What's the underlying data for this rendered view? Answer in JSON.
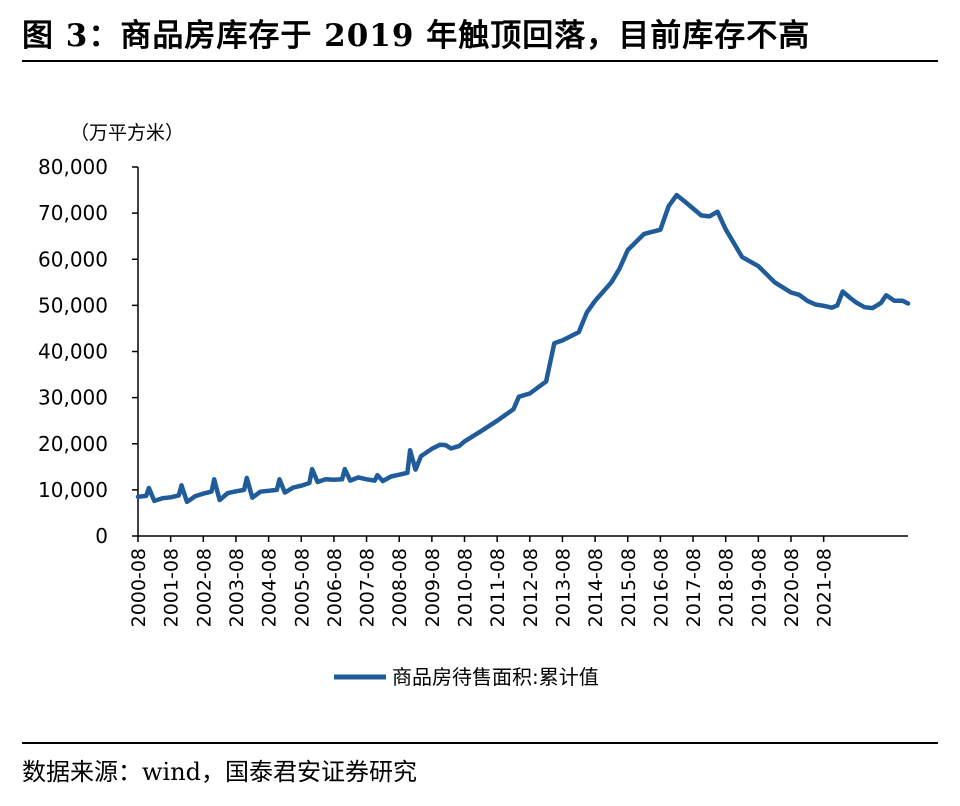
{
  "figure": {
    "title": "图 3：商品房库存于 2019 年触顶回落，目前库存不高",
    "source": "数据来源：wind，国泰君安证券研究"
  },
  "colors": {
    "series": "#1f5c99",
    "axis": "#000000"
  },
  "chart_data": {
    "type": "line",
    "unit_label": "（万平方米）",
    "ylim": [
      0,
      80000
    ],
    "y_ticks": [
      {
        "value": 0,
        "label": "0"
      },
      {
        "value": 10000,
        "label": "10,000"
      },
      {
        "value": 20000,
        "label": "20,000"
      },
      {
        "value": 30000,
        "label": "30,000"
      },
      {
        "value": 40000,
        "label": "40,000"
      },
      {
        "value": 50000,
        "label": "50,000"
      },
      {
        "value": 60000,
        "label": "60,000"
      },
      {
        "value": 70000,
        "label": "70,000"
      },
      {
        "value": 80000,
        "label": "80,000"
      }
    ],
    "x_ticks": [
      "2000-08",
      "2001-08",
      "2002-08",
      "2003-08",
      "2004-08",
      "2005-08",
      "2006-08",
      "2007-08",
      "2008-08",
      "2009-08",
      "2010-08",
      "2011-08",
      "2012-08",
      "2013-08",
      "2014-08",
      "2015-08",
      "2016-08",
      "2017-08",
      "2018-08",
      "2019-08",
      "2020-08",
      "2021-08"
    ],
    "grid": false,
    "legend_position": "bottom",
    "series": [
      {
        "name": "商品房待售面积:累计值",
        "points": [
          {
            "x": "2000-08",
            "y": 8500
          },
          {
            "x": "2000-11",
            "y": 8700
          },
          {
            "x": "2000-12",
            "y": 10400
          },
          {
            "x": "2001-02",
            "y": 7600
          },
          {
            "x": "2001-05",
            "y": 8200
          },
          {
            "x": "2001-08",
            "y": 8400
          },
          {
            "x": "2001-11",
            "y": 8800
          },
          {
            "x": "2001-12",
            "y": 11000
          },
          {
            "x": "2002-02",
            "y": 7400
          },
          {
            "x": "2002-05",
            "y": 8600
          },
          {
            "x": "2002-08",
            "y": 9200
          },
          {
            "x": "2002-11",
            "y": 9600
          },
          {
            "x": "2002-12",
            "y": 12300
          },
          {
            "x": "2003-02",
            "y": 7800
          },
          {
            "x": "2003-05",
            "y": 9300
          },
          {
            "x": "2003-08",
            "y": 9700
          },
          {
            "x": "2003-11",
            "y": 10000
          },
          {
            "x": "2003-12",
            "y": 12600
          },
          {
            "x": "2004-02",
            "y": 8300
          },
          {
            "x": "2004-05",
            "y": 9600
          },
          {
            "x": "2004-08",
            "y": 9800
          },
          {
            "x": "2004-11",
            "y": 10000
          },
          {
            "x": "2004-12",
            "y": 12300
          },
          {
            "x": "2005-02",
            "y": 9400
          },
          {
            "x": "2005-05",
            "y": 10500
          },
          {
            "x": "2005-08",
            "y": 10900
          },
          {
            "x": "2005-11",
            "y": 11500
          },
          {
            "x": "2005-12",
            "y": 14500
          },
          {
            "x": "2006-02",
            "y": 11700
          },
          {
            "x": "2006-05",
            "y": 12300
          },
          {
            "x": "2006-08",
            "y": 12200
          },
          {
            "x": "2006-11",
            "y": 12300
          },
          {
            "x": "2006-12",
            "y": 14500
          },
          {
            "x": "2007-02",
            "y": 12000
          },
          {
            "x": "2007-05",
            "y": 12700
          },
          {
            "x": "2007-08",
            "y": 12300
          },
          {
            "x": "2007-11",
            "y": 12000
          },
          {
            "x": "2007-12",
            "y": 13200
          },
          {
            "x": "2008-02",
            "y": 11900
          },
          {
            "x": "2008-05",
            "y": 12900
          },
          {
            "x": "2008-08",
            "y": 13300
          },
          {
            "x": "2008-11",
            "y": 13700
          },
          {
            "x": "2008-12",
            "y": 18600
          },
          {
            "x": "2009-02",
            "y": 14400
          },
          {
            "x": "2009-04",
            "y": 17300
          },
          {
            "x": "2009-08",
            "y": 18900
          },
          {
            "x": "2009-11",
            "y": 19800
          },
          {
            "x": "2010-01",
            "y": 19700
          },
          {
            "x": "2010-03",
            "y": 19000
          },
          {
            "x": "2010-06",
            "y": 19500
          },
          {
            "x": "2010-08",
            "y": 20500
          },
          {
            "x": "2011-02",
            "y": 22700
          },
          {
            "x": "2011-08",
            "y": 25000
          },
          {
            "x": "2012-02",
            "y": 27500
          },
          {
            "x": "2012-04",
            "y": 30200
          },
          {
            "x": "2012-08",
            "y": 30900
          },
          {
            "x": "2013-02",
            "y": 33500
          },
          {
            "x": "2013-05",
            "y": 41800
          },
          {
            "x": "2013-08",
            "y": 42400
          },
          {
            "x": "2014-02",
            "y": 44200
          },
          {
            "x": "2014-05",
            "y": 48500
          },
          {
            "x": "2014-08",
            "y": 51000
          },
          {
            "x": "2015-02",
            "y": 55000
          },
          {
            "x": "2015-05",
            "y": 58000
          },
          {
            "x": "2015-08",
            "y": 62000
          },
          {
            "x": "2016-02",
            "y": 65500
          },
          {
            "x": "2016-08",
            "y": 66400
          },
          {
            "x": "2016-11",
            "y": 71500
          },
          {
            "x": "2017-02",
            "y": 73900
          },
          {
            "x": "2017-05",
            "y": 72500
          },
          {
            "x": "2017-08",
            "y": 71000
          },
          {
            "x": "2017-11",
            "y": 69500
          },
          {
            "x": "2018-02",
            "y": 69300
          },
          {
            "x": "2018-05",
            "y": 70300
          },
          {
            "x": "2018-08",
            "y": 66500
          },
          {
            "x": "2019-02",
            "y": 60500
          },
          {
            "x": "2019-08",
            "y": 58500
          },
          {
            "x": "2020-02",
            "y": 55000
          },
          {
            "x": "2020-08",
            "y": 52800
          },
          {
            "x": "2020-11",
            "y": 52300
          },
          {
            "x": "2021-02",
            "y": 51000
          },
          {
            "x": "2021-05",
            "y": 50200
          },
          {
            "x": "2021-08",
            "y": 49900
          },
          {
            "x": "2021-11",
            "y": 49500
          },
          {
            "x": "2022-01",
            "y": 50000
          },
          {
            "x": "2022-03",
            "y": 53000
          },
          {
            "x": "2022-06",
            "y": 51500
          },
          {
            "x": "2022-08",
            "y": 50600
          },
          {
            "x": "2022-11",
            "y": 49600
          },
          {
            "x": "2023-02",
            "y": 49400
          },
          {
            "x": "2023-05",
            "y": 50500
          },
          {
            "x": "2023-07",
            "y": 52200
          },
          {
            "x": "2023-10",
            "y": 51000
          },
          {
            "x": "2024-01",
            "y": 51000
          },
          {
            "x": "2024-03",
            "y": 50400
          }
        ]
      }
    ]
  }
}
